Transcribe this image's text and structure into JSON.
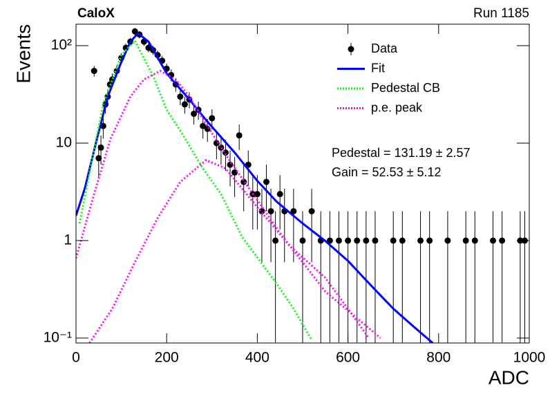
{
  "chart_data": {
    "type": "line",
    "title": "CaloX",
    "subtitle": "Run 1185",
    "x_label": "ADC",
    "y_label": "Events",
    "annotations": [
      "Pedestal = 131.19 ± 2.57",
      "Gain = 52.53 ± 5.12"
    ],
    "xlim": [
      0,
      1000
    ],
    "xticks": [
      0,
      200,
      400,
      600,
      800,
      1000
    ],
    "ylim": [
      0.089,
      166
    ],
    "ylog": true,
    "yticks": [
      {
        "value": 0.1,
        "label": "10⁻¹"
      },
      1,
      10,
      {
        "value": 100,
        "label": "10²"
      }
    ],
    "legend": "top-right",
    "series": [
      {
        "name": "Data",
        "type": "errorbar",
        "color": "#000000",
        "x": [
          40,
          50,
          55,
          60,
          65,
          70,
          75,
          80,
          90,
          100,
          110,
          120,
          130,
          140,
          150,
          160,
          170,
          180,
          190,
          200,
          210,
          220,
          230,
          240,
          250,
          260,
          270,
          280,
          290,
          300,
          310,
          320,
          330,
          340,
          350,
          360,
          370,
          380,
          390,
          400,
          410,
          420,
          430,
          440,
          450,
          460,
          480,
          500,
          520,
          540,
          560,
          580,
          600,
          620,
          640,
          660,
          700,
          720,
          760,
          780,
          820,
          860,
          880,
          920,
          940,
          980,
          990
        ],
        "values": [
          55,
          7,
          9,
          15,
          25,
          30,
          40,
          45,
          55,
          75,
          95,
          110,
          140,
          130,
          110,
          95,
          90,
          80,
          70,
          58,
          50,
          40,
          30,
          25,
          28,
          20,
          22,
          15,
          14,
          18,
          10,
          9,
          8,
          6,
          5,
          12,
          4,
          6,
          3,
          3,
          2,
          4,
          2,
          1,
          3,
          2,
          2,
          1,
          2,
          1,
          1,
          1,
          1,
          1,
          1,
          1,
          1,
          1,
          1,
          1,
          1,
          1,
          1,
          1,
          1,
          1,
          1
        ],
        "errors": [
          7,
          2.6,
          3,
          3.9,
          5,
          5.5,
          6.3,
          6.7,
          7.4,
          8.7,
          9.7,
          10.5,
          11.8,
          11.4,
          10.5,
          9.7,
          9.5,
          8.9,
          8.4,
          7.6,
          7.1,
          6.3,
          5.5,
          5,
          5.3,
          4.5,
          4.7,
          3.9,
          3.7,
          4.2,
          3.2,
          3,
          2.8,
          2.4,
          2.2,
          3.5,
          2,
          2.4,
          1.7,
          1.7,
          1.4,
          2,
          1.4,
          1,
          1.7,
          1.4,
          1.4,
          1,
          1.4,
          1,
          1,
          1,
          1,
          1,
          1,
          1,
          1,
          1,
          1,
          1,
          1,
          1,
          1,
          1,
          1,
          1,
          1
        ]
      },
      {
        "name": "Fit",
        "type": "line",
        "color": "#0000ff",
        "style": "solid",
        "x": [
          0,
          20,
          46,
          70,
          99,
          120,
          137,
          160,
          200,
          250,
          290,
          350,
          400,
          443,
          500,
          549,
          600,
          650,
          700,
          750,
          787
        ],
        "values": [
          1.8,
          3.5,
          11,
          30,
          66,
          110,
          134,
          110,
          52,
          28,
          16.6,
          8,
          4.1,
          2.5,
          1.5,
          1.0,
          0.62,
          0.35,
          0.2,
          0.125,
          0.089
        ]
      },
      {
        "name": "Pedestal CB",
        "type": "line",
        "color": "#00ff00",
        "style": "dotted",
        "x": [
          8,
          30,
          60,
          100,
          130,
          171,
          200,
          232,
          280,
          320,
          366,
          443,
          480,
          519
        ],
        "values": [
          1.5,
          5,
          25,
          80,
          112,
          48,
          22,
          13,
          5.5,
          3,
          1.1,
          0.36,
          0.2,
          0.097
        ]
      },
      {
        "name": "p.e. peak",
        "type": "line",
        "color": "#ff00ff",
        "style": "dotted",
        "x": [
          0,
          40,
          76,
          120,
          150,
          186,
          220,
          250,
          290,
          340,
          400,
          450,
          500,
          550,
          620,
          672,
          null,
          30,
          80,
          130,
          180,
          230,
          287,
          330,
          400,
          470,
          549,
          600,
          646
        ],
        "values": [
          0.66,
          3,
          11,
          30,
          45,
          55,
          45,
          30,
          15,
          6.5,
          2.6,
          1.2,
          0.6,
          0.3,
          0.16,
          0.1,
          null,
          0.089,
          0.2,
          0.6,
          1.7,
          4,
          6.7,
          5.5,
          2.2,
          0.9,
          0.42,
          0.2,
          0.1
        ]
      }
    ]
  }
}
